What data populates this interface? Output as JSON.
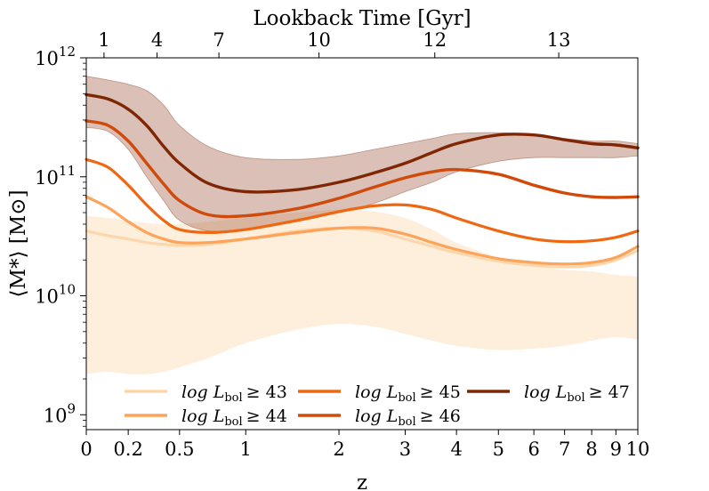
{
  "chart_data": {
    "type": "line",
    "title": "",
    "xlabel": "z",
    "ylabel": "⟨M*⟩ [M⊙]",
    "top_xlabel": "Lookback Time [Gyr]",
    "x_scale": "log(1+z)",
    "y_scale": "log",
    "xlim": [
      0,
      10
    ],
    "ylim": [
      750000000.0,
      1000000000000.0
    ],
    "x_ticks": [
      0,
      0.2,
      0.5,
      1,
      2,
      3,
      4,
      5,
      6,
      7,
      8,
      9,
      10
    ],
    "x_tick_labels": [
      "0",
      "0.2",
      "0.5",
      "1",
      "2",
      "3",
      "4",
      "5",
      "6",
      "7",
      "8",
      "9",
      "10"
    ],
    "y_ticks": [
      1000000000.0,
      10000000000.0,
      100000000000.0,
      1000000000000.0
    ],
    "y_tick_labels": [
      {
        "base": "10",
        "exp": "9"
      },
      {
        "base": "10",
        "exp": "10"
      },
      {
        "base": "10",
        "exp": "11"
      },
      {
        "base": "10",
        "exp": "12"
      }
    ],
    "top_ticks": [
      {
        "z": 0.08,
        "label": "1"
      },
      {
        "z": 0.36,
        "label": "4"
      },
      {
        "z": 0.78,
        "label": "7"
      },
      {
        "z": 1.75,
        "label": "10"
      },
      {
        "z": 3.55,
        "label": "12"
      },
      {
        "z": 6.8,
        "label": "13"
      }
    ],
    "grid": false,
    "legend_position": "bottom",
    "series": [
      {
        "name": "log L_bol ≥ 43",
        "label_lhs": "log L",
        "label_sub": "bol",
        "label_rhs": "≥ 43",
        "color": "#fdd7ab",
        "stroke_width": 3.2,
        "x": [
          0,
          0.1,
          0.2,
          0.3,
          0.4,
          0.5,
          0.7,
          1.0,
          1.5,
          2.0,
          2.5,
          3.0,
          3.5,
          4.0,
          5.0,
          6.0,
          7.0,
          8.0,
          9.0,
          10.0
        ],
        "y": [
          35000000000.0,
          32000000000.0,
          30000000000.0,
          28000000000.0,
          27000000000.0,
          26500000000.0,
          27000000000.0,
          30000000000.0,
          35000000000.0,
          37000000000.0,
          35000000000.0,
          30000000000.0,
          26000000000.0,
          23000000000.0,
          19500000000.0,
          18000000000.0,
          17500000000.0,
          18000000000.0,
          20000000000.0,
          24000000000.0
        ],
        "band_low": [
          2200000000.0,
          2300000000.0,
          2200000000.0,
          2200000000.0,
          2300000000.0,
          2500000000.0,
          3000000000.0,
          4000000000.0,
          5200000000.0,
          5800000000.0,
          5500000000.0,
          4800000000.0,
          4200000000.0,
          3800000000.0,
          3500000000.0,
          3600000000.0,
          3800000000.0,
          4200000000.0,
          4500000000.0,
          4300000000.0
        ],
        "band_high": [
          47000000000.0,
          45000000000.0,
          43000000000.0,
          41000000000.0,
          40000000000.0,
          40000000000.0,
          42000000000.0,
          45000000000.0,
          50000000000.0,
          53000000000.0,
          51000000000.0,
          45000000000.0,
          36000000000.0,
          28000000000.0,
          21000000000.0,
          18000000000.0,
          16500000000.0,
          16000000000.0,
          15000000000.0,
          14500000000.0
        ]
      },
      {
        "name": "log L_bol ≥ 44",
        "label_lhs": "log L",
        "label_sub": "bol",
        "label_rhs": "≥ 44",
        "color": "#fda35a",
        "stroke_width": 3.2,
        "x": [
          0,
          0.1,
          0.2,
          0.3,
          0.4,
          0.5,
          0.7,
          1.0,
          1.5,
          2.0,
          2.5,
          3.0,
          3.5,
          4.0,
          5.0,
          6.0,
          7.0,
          8.0,
          9.0,
          10.0
        ],
        "y": [
          68000000000.0,
          55000000000.0,
          42000000000.0,
          34000000000.0,
          30000000000.0,
          28000000000.0,
          28000000000.0,
          30000000000.0,
          34000000000.0,
          37000000000.0,
          37000000000.0,
          33000000000.0,
          28000000000.0,
          24500000000.0,
          20500000000.0,
          19000000000.0,
          18500000000.0,
          19000000000.0,
          21000000000.0,
          26000000000.0
        ]
      },
      {
        "name": "log L_bol ≥ 45",
        "label_lhs": "log L",
        "label_sub": "bol",
        "label_rhs": "≥ 45",
        "color": "#f06712",
        "stroke_width": 3.2,
        "x": [
          0,
          0.1,
          0.2,
          0.3,
          0.4,
          0.5,
          0.7,
          1.0,
          1.5,
          2.0,
          2.5,
          3.0,
          3.5,
          4.0,
          5.0,
          6.0,
          7.0,
          8.0,
          9.0,
          10.0
        ],
        "y": [
          140000000000.0,
          120000000000.0,
          85000000000.0,
          58000000000.0,
          43000000000.0,
          36000000000.0,
          34000000000.0,
          36000000000.0,
          43000000000.0,
          51000000000.0,
          57000000000.0,
          58000000000.0,
          53000000000.0,
          45000000000.0,
          35000000000.0,
          30000000000.0,
          28500000000.0,
          29000000000.0,
          31000000000.0,
          35000000000.0
        ]
      },
      {
        "name": "log L_bol ≥ 46",
        "label_lhs": "log L",
        "label_sub": "bol",
        "label_rhs": "≥ 46",
        "color": "#d04b0b",
        "stroke_width": 3.4,
        "x": [
          0,
          0.1,
          0.2,
          0.3,
          0.4,
          0.5,
          0.7,
          1.0,
          1.5,
          2.0,
          2.5,
          3.0,
          3.5,
          4.0,
          5.0,
          6.0,
          7.0,
          8.0,
          9.0,
          10.0
        ],
        "y": [
          295000000000.0,
          270000000000.0,
          200000000000.0,
          130000000000.0,
          87000000000.0,
          63000000000.0,
          48000000000.0,
          47000000000.0,
          54000000000.0,
          66000000000.0,
          82000000000.0,
          98000000000.0,
          110000000000.0,
          115000000000.0,
          105000000000.0,
          85000000000.0,
          73000000000.0,
          68000000000.0,
          67000000000.0,
          68000000000.0
        ]
      },
      {
        "name": "log L_bol ≥ 47",
        "label_lhs": "log L",
        "label_sub": "bol",
        "label_rhs": "≥ 47",
        "color": "#7f2704",
        "stroke_width": 3.4,
        "x": [
          0,
          0.1,
          0.2,
          0.3,
          0.4,
          0.5,
          0.7,
          1.0,
          1.5,
          2.0,
          2.5,
          3.0,
          3.5,
          4.0,
          5.0,
          6.0,
          7.0,
          8.0,
          9.0,
          10.0
        ],
        "y": [
          490000000000.0,
          450000000000.0,
          370000000000.0,
          270000000000.0,
          180000000000.0,
          130000000000.0,
          88000000000.0,
          75000000000.0,
          78000000000.0,
          90000000000.0,
          108000000000.0,
          130000000000.0,
          160000000000.0,
          190000000000.0,
          225000000000.0,
          225000000000.0,
          205000000000.0,
          190000000000.0,
          185000000000.0,
          175000000000.0
        ],
        "band_low": [
          260000000000.0,
          240000000000.0,
          170000000000.0,
          100000000000.0,
          63000000000.0,
          43000000000.0,
          35000000000.0,
          36000000000.0,
          42000000000.0,
          50000000000.0,
          60000000000.0,
          75000000000.0,
          90000000000.0,
          110000000000.0,
          135000000000.0,
          145000000000.0,
          145000000000.0,
          145000000000.0,
          145000000000.0,
          150000000000.0
        ],
        "band_high": [
          700000000000.0,
          650000000000.0,
          600000000000.0,
          530000000000.0,
          400000000000.0,
          270000000000.0,
          180000000000.0,
          145000000000.0,
          140000000000.0,
          150000000000.0,
          170000000000.0,
          190000000000.0,
          210000000000.0,
          230000000000.0,
          235000000000.0,
          225000000000.0,
          210000000000.0,
          200000000000.0,
          200000000000.0,
          190000000000.0
        ],
        "band_color": "#8b3a1c"
      }
    ]
  }
}
